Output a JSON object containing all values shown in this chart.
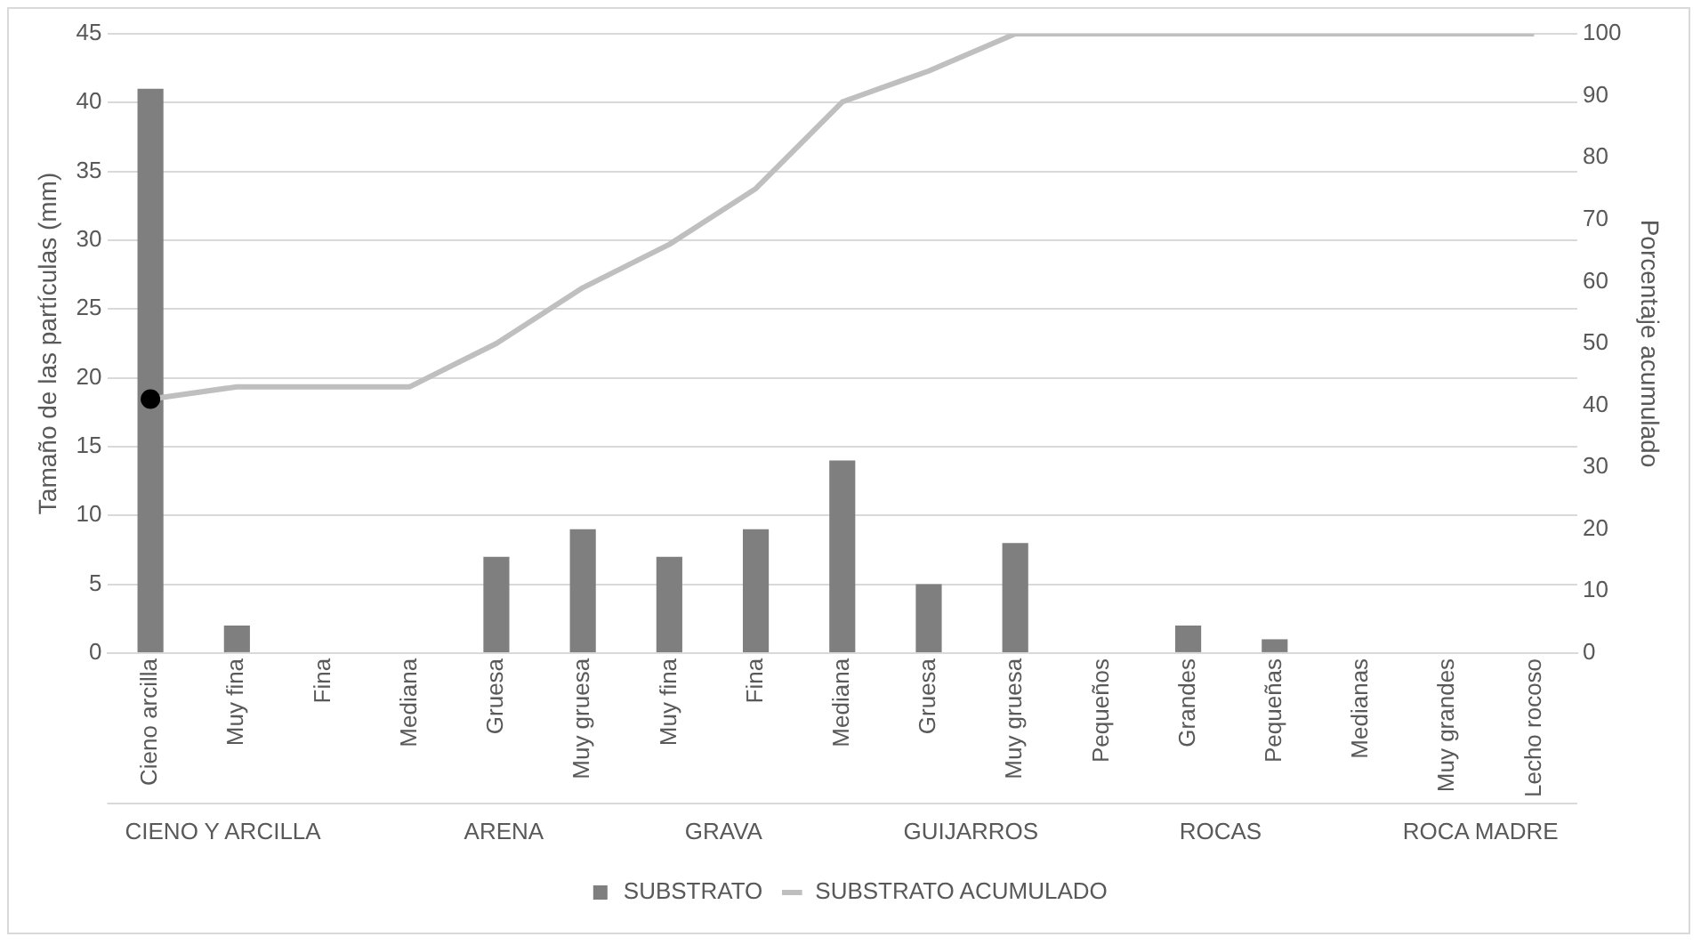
{
  "chart_data": {
    "type": "bar",
    "ylabel": "Tamaño de las partículas (mm)",
    "y2label": "Porcentaje acumulado",
    "categories": [
      "Cieno arcilla",
      "Muy fina",
      "Fina",
      "Mediana",
      "Gruesa",
      "Muy gruesa",
      "Muy fina",
      "Fina",
      "Mediana",
      "Gruesa",
      "Muy gruesa",
      "Pequeños",
      "Grandes",
      "Pequeñas",
      "Medianas",
      "Muy grandes",
      "Lecho rocoso"
    ],
    "series": [
      {
        "name": "SUBSTRATO",
        "color": "#7f7f7f",
        "values": [
          41,
          2,
          0,
          0,
          7,
          9,
          7,
          9,
          14,
          5,
          8,
          0,
          2,
          1,
          0,
          0,
          0
        ]
      },
      {
        "name": "SUBSTRATO ACUMULADO",
        "type": "line",
        "axis": "y2",
        "color": "#bfbfbf",
        "marker": "none",
        "values": [
          41,
          43,
          43,
          43,
          50,
          59,
          66,
          75,
          89,
          94,
          100,
          100,
          100,
          100,
          100,
          100,
          100
        ]
      },
      {
        "type": "scatter",
        "axis": "y2",
        "color": "#000000",
        "marker": "circle",
        "x": [
          "Cieno arcilla"
        ],
        "values": [
          41
        ]
      }
    ],
    "ylim": [
      0,
      45
    ],
    "yticks": [
      0,
      5,
      10,
      15,
      20,
      25,
      30,
      35,
      40,
      45
    ],
    "y2lim": [
      0,
      100
    ],
    "y2ticks": [
      0,
      10,
      20,
      30,
      40,
      50,
      60,
      70,
      80,
      90,
      100
    ],
    "grid": "y",
    "legend": "bottom",
    "annotations": [
      "CIENO Y ARCILLA",
      "ARENA",
      "GRAVA",
      "GUIJARROS",
      "ROCAS",
      "ROCA MADRE"
    ]
  }
}
